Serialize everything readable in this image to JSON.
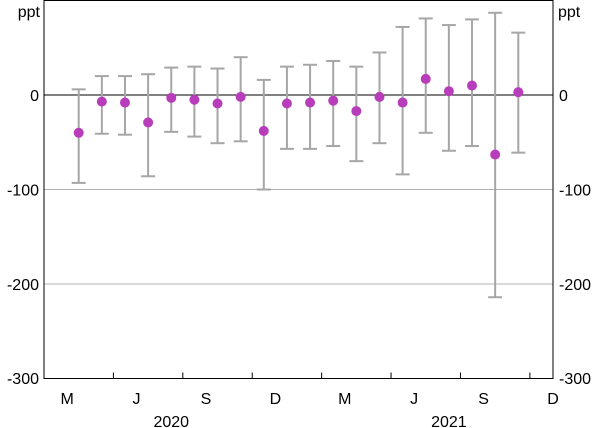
{
  "chart_data": {
    "type": "scatter",
    "title": "",
    "xlabel": "",
    "ylabel": "",
    "unit_left": "ppt",
    "unit_right": "ppt",
    "ylim": [
      -300,
      100
    ],
    "yticks": [
      -300,
      -200,
      -100,
      0
    ],
    "grid": true,
    "month_ticks": [
      "M",
      "J",
      "S",
      "D",
      "M",
      "J",
      "S",
      "D"
    ],
    "year_labels": [
      "2020",
      "2021"
    ],
    "colors": {
      "point": "#b83dba",
      "errorbar": "#a6a6a6",
      "grid": "#b3b3b3",
      "zero_line": "#000000"
    },
    "series": [
      {
        "x": [
          "2020-04",
          "2020-05",
          "2020-06",
          "2020-07",
          "2020-08",
          "2020-09",
          "2020-10",
          "2020-11",
          "2020-12",
          "2021-01",
          "2021-02",
          "2021-03",
          "2021-04",
          "2021-05",
          "2021-06",
          "2021-07",
          "2021-08",
          "2021-09",
          "2021-10",
          "2021-11"
        ],
        "values": [
          -40,
          -7,
          -8,
          -29,
          -3,
          -5,
          -9,
          -2,
          -38,
          -9,
          -8,
          -6,
          -17,
          -2,
          -8,
          17,
          4,
          10,
          -63,
          3
        ],
        "lower": [
          -93,
          -41,
          -42,
          -86,
          -39,
          -44,
          -51,
          -49,
          -100,
          -57,
          -57,
          -54,
          -70,
          -51,
          -84,
          -40,
          -59,
          -54,
          -214,
          -61
        ],
        "upper": [
          6,
          20,
          20,
          22,
          29,
          30,
          28,
          40,
          16,
          30,
          32,
          36,
          30,
          45,
          72,
          81,
          74,
          80,
          87,
          66
        ]
      }
    ]
  }
}
